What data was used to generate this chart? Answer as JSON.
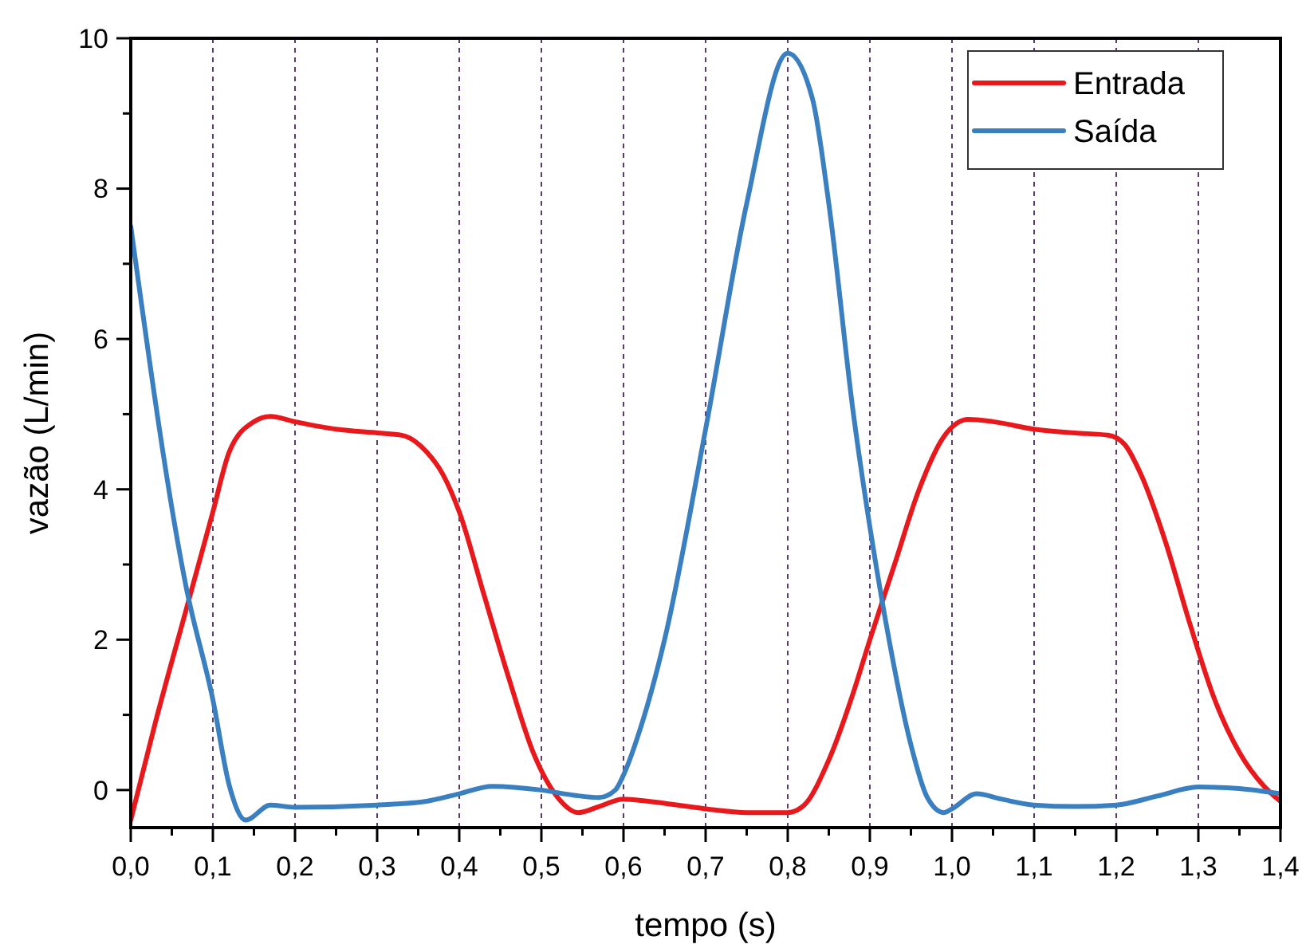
{
  "chart_data": {
    "type": "line",
    "xlabel": "tempo (s)",
    "ylabel": "vazão (L/min)",
    "xlim": [
      0,
      1.4
    ],
    "ylim": [
      -0.5,
      10
    ],
    "xticks": [
      {
        "value": 0,
        "label": "0,0"
      },
      {
        "value": 0.05,
        "label": null
      },
      {
        "value": 0.1,
        "label": "0,1"
      },
      {
        "value": 0.15,
        "label": null
      },
      {
        "value": 0.2,
        "label": "0,2"
      },
      {
        "value": 0.25,
        "label": null
      },
      {
        "value": 0.3,
        "label": "0,3"
      },
      {
        "value": 0.35,
        "label": null
      },
      {
        "value": 0.4,
        "label": "0,4"
      },
      {
        "value": 0.45,
        "label": null
      },
      {
        "value": 0.5,
        "label": "0,5"
      },
      {
        "value": 0.55,
        "label": null
      },
      {
        "value": 0.6,
        "label": "0,6"
      },
      {
        "value": 0.65,
        "label": null
      },
      {
        "value": 0.7,
        "label": "0,7"
      },
      {
        "value": 0.75,
        "label": null
      },
      {
        "value": 0.8,
        "label": "0,8"
      },
      {
        "value": 0.85,
        "label": null
      },
      {
        "value": 0.9,
        "label": "0,9"
      },
      {
        "value": 0.95,
        "label": null
      },
      {
        "value": 1.0,
        "label": "1,0"
      },
      {
        "value": 1.05,
        "label": null
      },
      {
        "value": 1.1,
        "label": "1,1"
      },
      {
        "value": 1.15,
        "label": null
      },
      {
        "value": 1.2,
        "label": "1,2"
      },
      {
        "value": 1.25,
        "label": null
      },
      {
        "value": 1.3,
        "label": "1,3"
      },
      {
        "value": 1.35,
        "label": null
      },
      {
        "value": 1.4,
        "label": "1,4"
      }
    ],
    "yticks": [
      0,
      {
        "value": 1,
        "label": null
      },
      2,
      {
        "value": 3,
        "label": null
      },
      4,
      {
        "value": 5,
        "label": null
      },
      6,
      {
        "value": 7,
        "label": null
      },
      8,
      {
        "value": 9,
        "label": null
      },
      10
    ],
    "grid": "x",
    "legend": "top right",
    "marker": "none",
    "line_style": "solid",
    "series": [
      {
        "name": "Entrada",
        "color": "#e8191c",
        "x": [
          0,
          0.03,
          0.07,
          0.1,
          0.12,
          0.15,
          0.17,
          0.2,
          0.25,
          0.3,
          0.33,
          0.36,
          0.38,
          0.4,
          0.43,
          0.46,
          0.49,
          0.52,
          0.545,
          0.57,
          0.6,
          0.63,
          0.7,
          0.75,
          0.8,
          0.82,
          0.85,
          0.88,
          0.9,
          0.93,
          0.96,
          0.99,
          1.02,
          1.05,
          1.1,
          1.15,
          1.19,
          1.21,
          1.23,
          1.26,
          1.29,
          1.32,
          1.35,
          1.38,
          1.4
        ],
        "values": [
          -0.4,
          0.9,
          2.5,
          3.7,
          4.5,
          4.9,
          4.97,
          4.9,
          4.8,
          4.75,
          4.72,
          4.5,
          4.2,
          3.7,
          2.6,
          1.5,
          0.5,
          -0.1,
          -0.3,
          -0.22,
          -0.12,
          -0.15,
          -0.25,
          -0.3,
          -0.3,
          -0.2,
          0.4,
          1.3,
          2.0,
          3.0,
          4.0,
          4.7,
          4.93,
          4.9,
          4.8,
          4.75,
          4.72,
          4.6,
          4.2,
          3.3,
          2.2,
          1.2,
          0.5,
          0.05,
          -0.15
        ]
      },
      {
        "name": "Saída",
        "color": "#3a7fbf",
        "x": [
          0,
          0.068,
          0.1,
          0.12,
          0.14,
          0.17,
          0.2,
          0.3,
          0.36,
          0.4,
          0.44,
          0.5,
          0.54,
          0.57,
          0.59,
          0.6,
          0.62,
          0.65,
          0.7,
          0.75,
          0.8,
          0.83,
          0.85,
          0.88,
          0.9,
          0.92,
          0.95,
          0.97,
          0.99,
          1.0,
          1.03,
          1.06,
          1.1,
          1.15,
          1.2,
          1.25,
          1.3,
          1.35,
          1.4
        ],
        "values": [
          7.5,
          2.67,
          1.2,
          0.06,
          -0.4,
          -0.2,
          -0.23,
          -0.2,
          -0.15,
          -0.05,
          0.05,
          0.0,
          -0.07,
          -0.1,
          0.0,
          0.2,
          0.8,
          2.0,
          4.8,
          7.8,
          9.8,
          9.2,
          7.8,
          5.0,
          3.5,
          2.2,
          0.6,
          -0.1,
          -0.3,
          -0.25,
          -0.05,
          -0.12,
          -0.2,
          -0.22,
          -0.2,
          -0.08,
          0.04,
          0.02,
          -0.05
        ]
      }
    ]
  }
}
